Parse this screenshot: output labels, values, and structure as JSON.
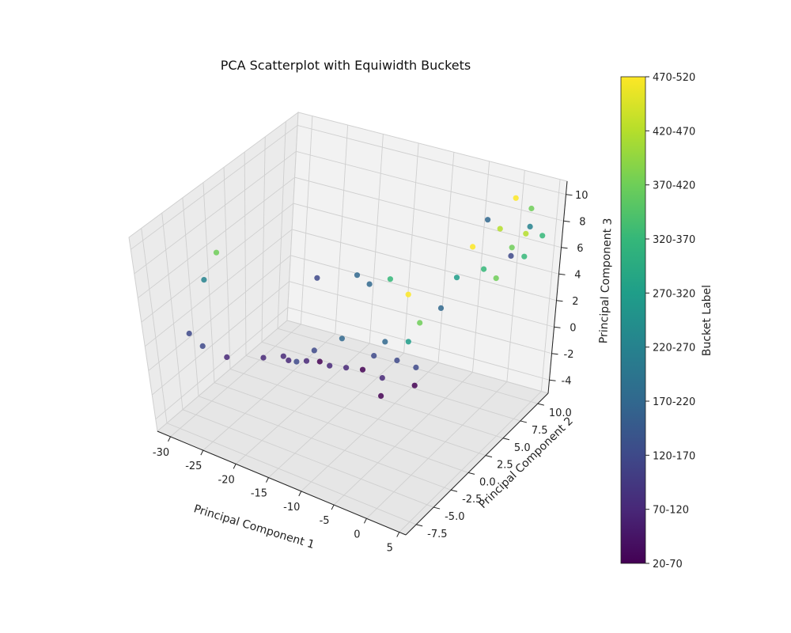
{
  "chart_data": {
    "type": "scatter",
    "title": "PCA Scatterplot with Equiwidth Buckets",
    "xlabel": "Principal Component 1",
    "ylabel": "Principal Component 2",
    "zlabel": "Principal Component 3",
    "xlim": [
      -32,
      6
    ],
    "ylim": [
      -9,
      11.5
    ],
    "zlim": [
      -5,
      11
    ],
    "x_ticks": [
      "-30",
      "-25",
      "-20",
      "-15",
      "-10",
      "-5",
      "0",
      "5"
    ],
    "y_ticks": [
      "-7.5",
      "-5.0",
      "-2.5",
      "0.0",
      "2.5",
      "5.0",
      "7.5",
      "10.0"
    ],
    "z_ticks": [
      "-4",
      "-2",
      "0",
      "2",
      "4",
      "6",
      "8",
      "10"
    ],
    "grid": true,
    "colorbar": {
      "label": "Bucket Label",
      "colormap": "viridis",
      "labels": [
        "20-70",
        "70-120",
        "120-170",
        "170-220",
        "220-270",
        "270-320",
        "320-370",
        "370-420",
        "420-470",
        "470-520"
      ]
    },
    "points": [
      [
        -30,
        -7.5,
        2,
        2
      ],
      [
        -29,
        -7.0,
        6,
        4
      ],
      [
        -28,
        -6.5,
        8,
        7
      ],
      [
        -26,
        -5.5,
        0,
        1
      ],
      [
        -28.5,
        -6.8,
        1,
        2
      ],
      [
        -22,
        -4,
        0,
        1
      ],
      [
        -20,
        -3,
        0,
        1
      ],
      [
        -19,
        -3.2,
        0,
        1
      ],
      [
        -18,
        -3,
        0,
        2
      ],
      [
        -17,
        -2.5,
        0,
        1
      ],
      [
        -16,
        -2.5,
        1,
        2
      ],
      [
        -15.5,
        -2,
        0,
        0
      ],
      [
        -14,
        -2,
        0,
        1
      ],
      [
        -13,
        -1.5,
        2,
        3
      ],
      [
        -12,
        -1.5,
        0,
        1
      ],
      [
        -10,
        -1,
        0,
        0
      ],
      [
        -9,
        -0.5,
        1,
        2
      ],
      [
        -8,
        0,
        2,
        3
      ],
      [
        -7,
        -1,
        0,
        1
      ],
      [
        -6.5,
        -1.5,
        -1,
        0
      ],
      [
        -6,
        0,
        1,
        2
      ],
      [
        -5.5,
        1,
        2,
        5
      ],
      [
        -5,
        2,
        3,
        7
      ],
      [
        -4.5,
        1.5,
        0,
        2
      ],
      [
        -4,
        1,
        -1,
        0
      ],
      [
        -17,
        -2,
        6,
        2
      ],
      [
        -13,
        0,
        6,
        3
      ],
      [
        -12,
        1,
        5,
        3
      ],
      [
        -9,
        1,
        6,
        6
      ],
      [
        -8,
        3,
        4,
        9
      ],
      [
        -3,
        3,
        4,
        3
      ],
      [
        -2,
        4,
        6,
        5
      ],
      [
        -1,
        5,
        8,
        9
      ],
      [
        0,
        6,
        6,
        6
      ],
      [
        1,
        7,
        5,
        7
      ],
      [
        2,
        8,
        7,
        7
      ],
      [
        3,
        9,
        6,
        6
      ],
      [
        -1,
        7,
        9,
        3
      ],
      [
        1,
        9,
        10,
        9
      ],
      [
        2.5,
        10,
        9,
        7
      ],
      [
        4,
        10.5,
        7,
        6
      ],
      [
        0,
        8,
        8,
        8
      ],
      [
        1.5,
        8.5,
        6,
        2
      ],
      [
        3,
        9.5,
        8,
        4
      ],
      [
        2,
        10,
        7,
        8
      ]
    ]
  }
}
